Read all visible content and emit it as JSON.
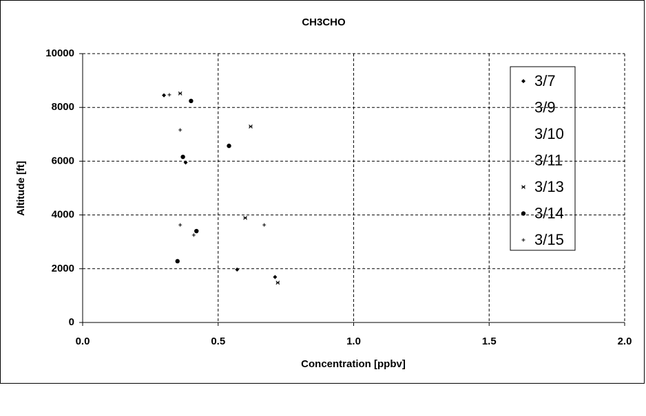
{
  "chart_data": {
    "type": "scatter",
    "title": "CH3CHO",
    "x_label": "Concentration [ppbv]",
    "y_label": "Altitude [ft]",
    "xlim": [
      0,
      2
    ],
    "ylim": [
      0,
      10000
    ],
    "xticks": [
      {
        "value": 0,
        "label": "0.0"
      },
      {
        "value": 0.5,
        "label": "0.5"
      },
      {
        "value": 1,
        "label": "1.0"
      },
      {
        "value": 1.5,
        "label": "1.5"
      },
      {
        "value": 2,
        "label": "2.0"
      }
    ],
    "yticks": [
      0,
      2000,
      4000,
      6000,
      8000,
      10000
    ],
    "grid": true,
    "legend": "right",
    "series": [
      {
        "name": "3/7",
        "color": "#000000",
        "marker": "diamond",
        "x": [
          0.3,
          0.38,
          0.57,
          0.71
        ],
        "values": [
          8450,
          5950,
          1970,
          1690
        ]
      },
      {
        "name": "3/9",
        "color": "#000000",
        "marker": "none",
        "x": [],
        "values": []
      },
      {
        "name": "3/10",
        "color": "#000000",
        "marker": "none",
        "x": [],
        "values": []
      },
      {
        "name": "3/11",
        "color": "#000000",
        "marker": "none",
        "x": [],
        "values": []
      },
      {
        "name": "3/13",
        "color": "#000000",
        "marker": "star",
        "x": [
          0.36,
          0.62,
          0.6,
          0.72
        ],
        "values": [
          8520,
          7290,
          3890,
          1480
        ]
      },
      {
        "name": "3/14",
        "color": "#000000",
        "marker": "circle",
        "x": [
          0.4,
          0.54,
          0.37,
          0.42,
          0.35
        ],
        "values": [
          8240,
          6570,
          6160,
          3400,
          2280
        ]
      },
      {
        "name": "3/15",
        "color": "#000000",
        "marker": "plus",
        "x": [
          0.32,
          0.36,
          0.36,
          0.67,
          0.41
        ],
        "values": [
          8470,
          7160,
          3630,
          3630,
          3250
        ]
      }
    ]
  }
}
